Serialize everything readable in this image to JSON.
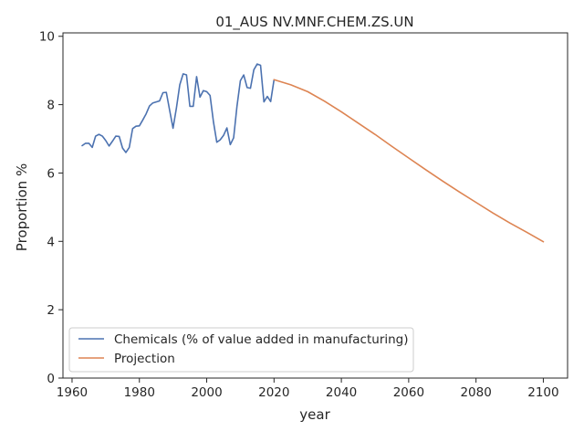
{
  "chart_data": {
    "type": "line",
    "title": "01_AUS NV.MNF.CHEM.ZS.UN",
    "xlabel": "year",
    "ylabel": "Proportion %",
    "xlim": [
      1957.3,
      2107.2
    ],
    "ylim": [
      0,
      10.1
    ],
    "xticks": [
      1960,
      1980,
      2000,
      2020,
      2040,
      2060,
      2080,
      2100
    ],
    "yticks": [
      0,
      2,
      4,
      6,
      8,
      10
    ],
    "grid": false,
    "legend_position": "lower-left",
    "series": [
      {
        "name": "Chemicals (% of value added in manufacturing)",
        "color": "#4c72b0",
        "x": [
          1963,
          1964,
          1965,
          1966,
          1967,
          1968,
          1969,
          1970,
          1971,
          1972,
          1973,
          1974,
          1975,
          1976,
          1977,
          1978,
          1979,
          1980,
          1981,
          1982,
          1983,
          1984,
          1985,
          1986,
          1987,
          1988,
          1989,
          1990,
          1991,
          1992,
          1993,
          1994,
          1995,
          1996,
          1997,
          1998,
          1999,
          2000,
          2001,
          2002,
          2003,
          2004,
          2005,
          2006,
          2007,
          2008,
          2009,
          2010,
          2011,
          2012,
          2013,
          2014,
          2015,
          2016,
          2017,
          2018,
          2019,
          2020
        ],
        "y": [
          6.8,
          6.87,
          6.87,
          6.75,
          7.08,
          7.13,
          7.08,
          6.95,
          6.79,
          6.93,
          7.08,
          7.07,
          6.73,
          6.6,
          6.75,
          7.3,
          7.37,
          7.38,
          7.55,
          7.73,
          7.96,
          8.05,
          8.08,
          8.11,
          8.35,
          8.36,
          7.83,
          7.31,
          7.9,
          8.58,
          8.9,
          8.87,
          7.95,
          7.95,
          8.82,
          8.22,
          8.41,
          8.38,
          8.27,
          7.5,
          6.9,
          6.97,
          7.1,
          7.32,
          6.83,
          7.03,
          7.96,
          8.7,
          8.87,
          8.5,
          8.48,
          9.02,
          9.19,
          9.15,
          8.08,
          8.24,
          8.09,
          8.73
        ]
      },
      {
        "name": "Projection",
        "color": "#dd8452",
        "x": [
          2020,
          2025,
          2030,
          2035,
          2040,
          2045,
          2050,
          2055,
          2060,
          2065,
          2070,
          2075,
          2080,
          2085,
          2090,
          2095,
          2100
        ],
        "y": [
          8.73,
          8.58,
          8.38,
          8.1,
          7.79,
          7.46,
          7.13,
          6.78,
          6.44,
          6.1,
          5.77,
          5.45,
          5.14,
          4.83,
          4.54,
          4.27,
          3.99
        ]
      }
    ]
  }
}
